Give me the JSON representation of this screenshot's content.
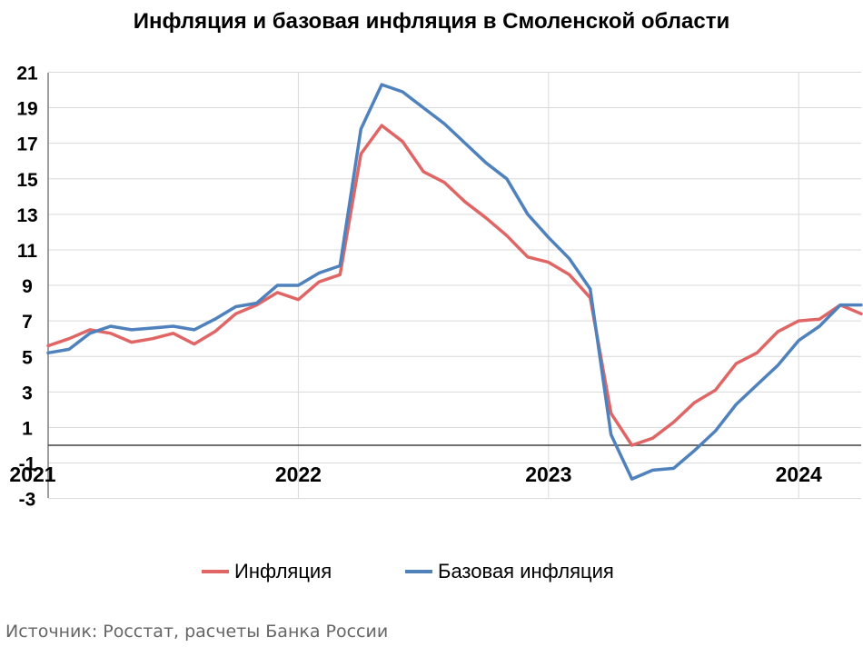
{
  "chart_data": {
    "type": "line",
    "title": "Инфляция и базовая инфляция в Смоленской области",
    "x_start": "2021-01",
    "x_frequency": "monthly",
    "x_tick_labels": [
      "2021",
      "2022",
      "2023",
      "2024"
    ],
    "y_ticks": [
      "21",
      "19",
      "17",
      "15",
      "13",
      "11",
      "9",
      "7",
      "5",
      "3",
      "1",
      "-1",
      "-3"
    ],
    "ylim": [
      -3,
      21
    ],
    "grid": true,
    "legend_position": "bottom",
    "series": [
      {
        "name": "Инфляция",
        "color": "#e06666",
        "values": [
          5.6,
          6.0,
          6.5,
          6.3,
          5.8,
          6.0,
          6.3,
          5.7,
          6.4,
          7.4,
          7.9,
          8.6,
          8.2,
          9.2,
          9.6,
          16.4,
          18.0,
          17.1,
          15.4,
          14.8,
          13.7,
          12.8,
          11.8,
          10.6,
          10.3,
          9.6,
          8.3,
          1.8,
          0.0,
          0.4,
          1.3,
          2.4,
          3.1,
          4.6,
          5.2,
          6.4,
          7.0,
          7.1,
          7.9,
          7.4
        ]
      },
      {
        "name": "Базовая инфляция",
        "color": "#4f81bd",
        "values": [
          5.2,
          5.4,
          6.3,
          6.7,
          6.5,
          6.6,
          6.7,
          6.5,
          7.1,
          7.8,
          8.0,
          9.0,
          9.0,
          9.7,
          10.1,
          17.8,
          20.3,
          19.9,
          19.0,
          18.1,
          17.0,
          15.9,
          15.0,
          13.0,
          11.7,
          10.5,
          8.8,
          0.6,
          -1.9,
          -1.4,
          -1.3,
          -0.3,
          0.8,
          2.3,
          3.4,
          4.5,
          5.9,
          6.7,
          7.9,
          7.9
        ]
      }
    ]
  },
  "source": "Источник: Росстат, расчеты Банка России"
}
